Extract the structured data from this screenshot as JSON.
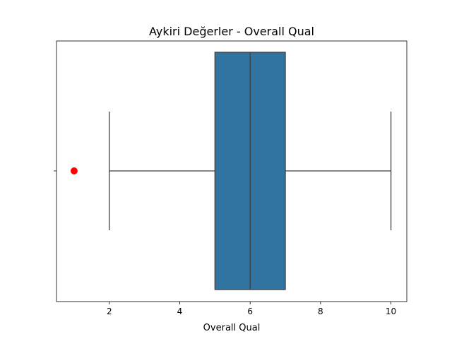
{
  "chart_data": {
    "type": "boxplot",
    "title": "Aykiri Değerler - Overall Qual",
    "xlabel": "Overall Qual",
    "ylabel": "",
    "orientation": "horizontal",
    "xlim": [
      0.5,
      10.45
    ],
    "x_ticks": [
      2,
      4,
      6,
      8,
      10
    ],
    "box": {
      "whisker_low": 2,
      "q1": 5,
      "median": 6,
      "q3": 7,
      "whisker_high": 10
    },
    "outliers": [
      1
    ],
    "colors": {
      "box_fill": "#3274a1",
      "line": "#3f3f3f",
      "outlier": "#ff0000"
    },
    "grid": false
  }
}
